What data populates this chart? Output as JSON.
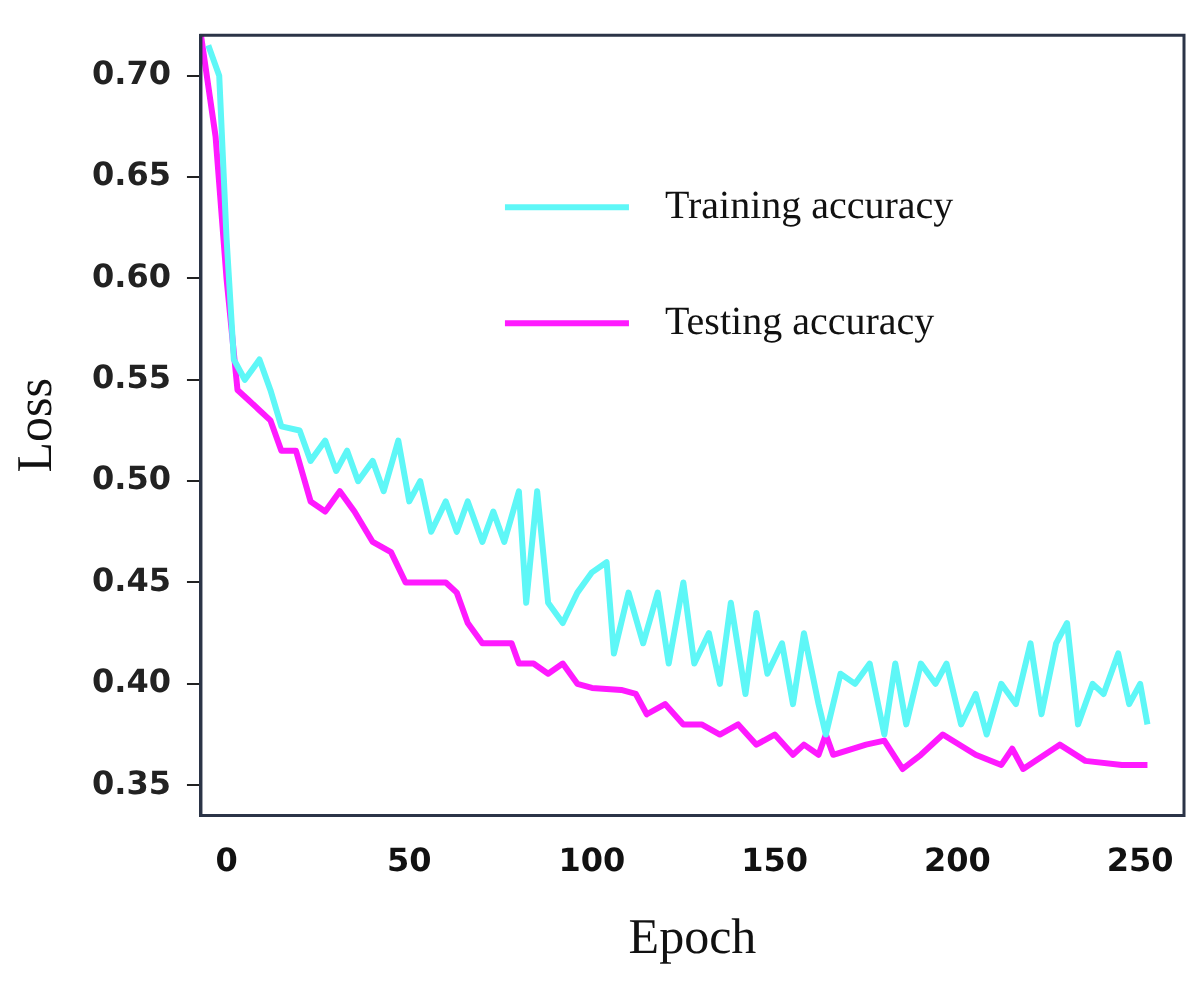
{
  "chart_data": {
    "type": "line",
    "xlabel": "Epoch",
    "ylabel": "Loss",
    "xlim": [
      -7,
      262
    ],
    "xticks": [
      0,
      50,
      100,
      150,
      200,
      250
    ],
    "ylim": [
      0.335,
      0.72
    ],
    "yticks": [
      0.35,
      {
        "value": 0.4,
        "label": "0.40"
      },
      0.45,
      {
        "value": 0.5,
        "label": "0.50"
      },
      0.55,
      {
        "value": 0.6,
        "label": "0.60"
      },
      0.65,
      {
        "value": 0.7,
        "label": "0.70"
      }
    ],
    "grid": false,
    "legend": "top right",
    "marker": "none",
    "line_style": "solid",
    "series": [
      {
        "name": "Training accuracy",
        "color": "#5ef7f7",
        "x": [
          -5,
          -2,
          0,
          2,
          5,
          9,
          12,
          15,
          20,
          23,
          27,
          30,
          33,
          36,
          40,
          43,
          47,
          50,
          53,
          56,
          60,
          63,
          66,
          70,
          73,
          76,
          80,
          82,
          85,
          88,
          92,
          96,
          100,
          104,
          106,
          110,
          114,
          118,
          121,
          125,
          128,
          132,
          135,
          138,
          142,
          145,
          148,
          152,
          155,
          158,
          162,
          164,
          168,
          172,
          176,
          180,
          183,
          186,
          190,
          194,
          197,
          201,
          205,
          208,
          212,
          216,
          220,
          223,
          227,
          230,
          233,
          237,
          240,
          244,
          247,
          250,
          252
        ],
        "values": [
          0.715,
          0.7,
          0.62,
          0.56,
          0.55,
          0.56,
          0.545,
          0.527,
          0.525,
          0.51,
          0.52,
          0.505,
          0.515,
          0.5,
          0.51,
          0.495,
          0.52,
          0.49,
          0.5,
          0.475,
          0.49,
          0.475,
          0.49,
          0.47,
          0.485,
          0.47,
          0.495,
          0.44,
          0.495,
          0.44,
          0.43,
          0.445,
          0.455,
          0.46,
          0.415,
          0.445,
          0.42,
          0.445,
          0.41,
          0.45,
          0.41,
          0.425,
          0.4,
          0.44,
          0.395,
          0.435,
          0.405,
          0.42,
          0.39,
          0.425,
          0.39,
          0.375,
          0.405,
          0.4,
          0.41,
          0.375,
          0.41,
          0.38,
          0.41,
          0.4,
          0.41,
          0.38,
          0.395,
          0.375,
          0.4,
          0.39,
          0.42,
          0.385,
          0.42,
          0.43,
          0.38,
          0.4,
          0.395,
          0.415,
          0.39,
          0.4,
          0.38
        ]
      },
      {
        "name": "Testing accuracy",
        "color": "#ff1aff",
        "x": [
          -7,
          -3,
          0,
          3,
          6,
          9,
          12,
          15,
          19,
          23,
          27,
          31,
          35,
          40,
          45,
          49,
          55,
          60,
          63,
          66,
          70,
          78,
          80,
          84,
          88,
          92,
          96,
          100,
          108,
          112,
          115,
          120,
          125,
          130,
          135,
          140,
          145,
          150,
          155,
          158,
          162,
          164,
          166,
          175,
          180,
          185,
          190,
          196,
          205,
          212,
          215,
          218,
          228,
          235,
          245,
          252
        ],
        "values": [
          0.72,
          0.67,
          0.6,
          0.545,
          0.54,
          0.535,
          0.53,
          0.515,
          0.515,
          0.49,
          0.485,
          0.495,
          0.485,
          0.47,
          0.465,
          0.45,
          0.45,
          0.45,
          0.445,
          0.43,
          0.42,
          0.42,
          0.41,
          0.41,
          0.405,
          0.41,
          0.4,
          0.398,
          0.397,
          0.395,
          0.385,
          0.39,
          0.38,
          0.38,
          0.375,
          0.38,
          0.37,
          0.375,
          0.365,
          0.37,
          0.365,
          0.375,
          0.365,
          0.37,
          0.372,
          0.358,
          0.365,
          0.375,
          0.365,
          0.36,
          0.368,
          0.358,
          0.37,
          0.362,
          0.36,
          0.36
        ]
      }
    ]
  }
}
